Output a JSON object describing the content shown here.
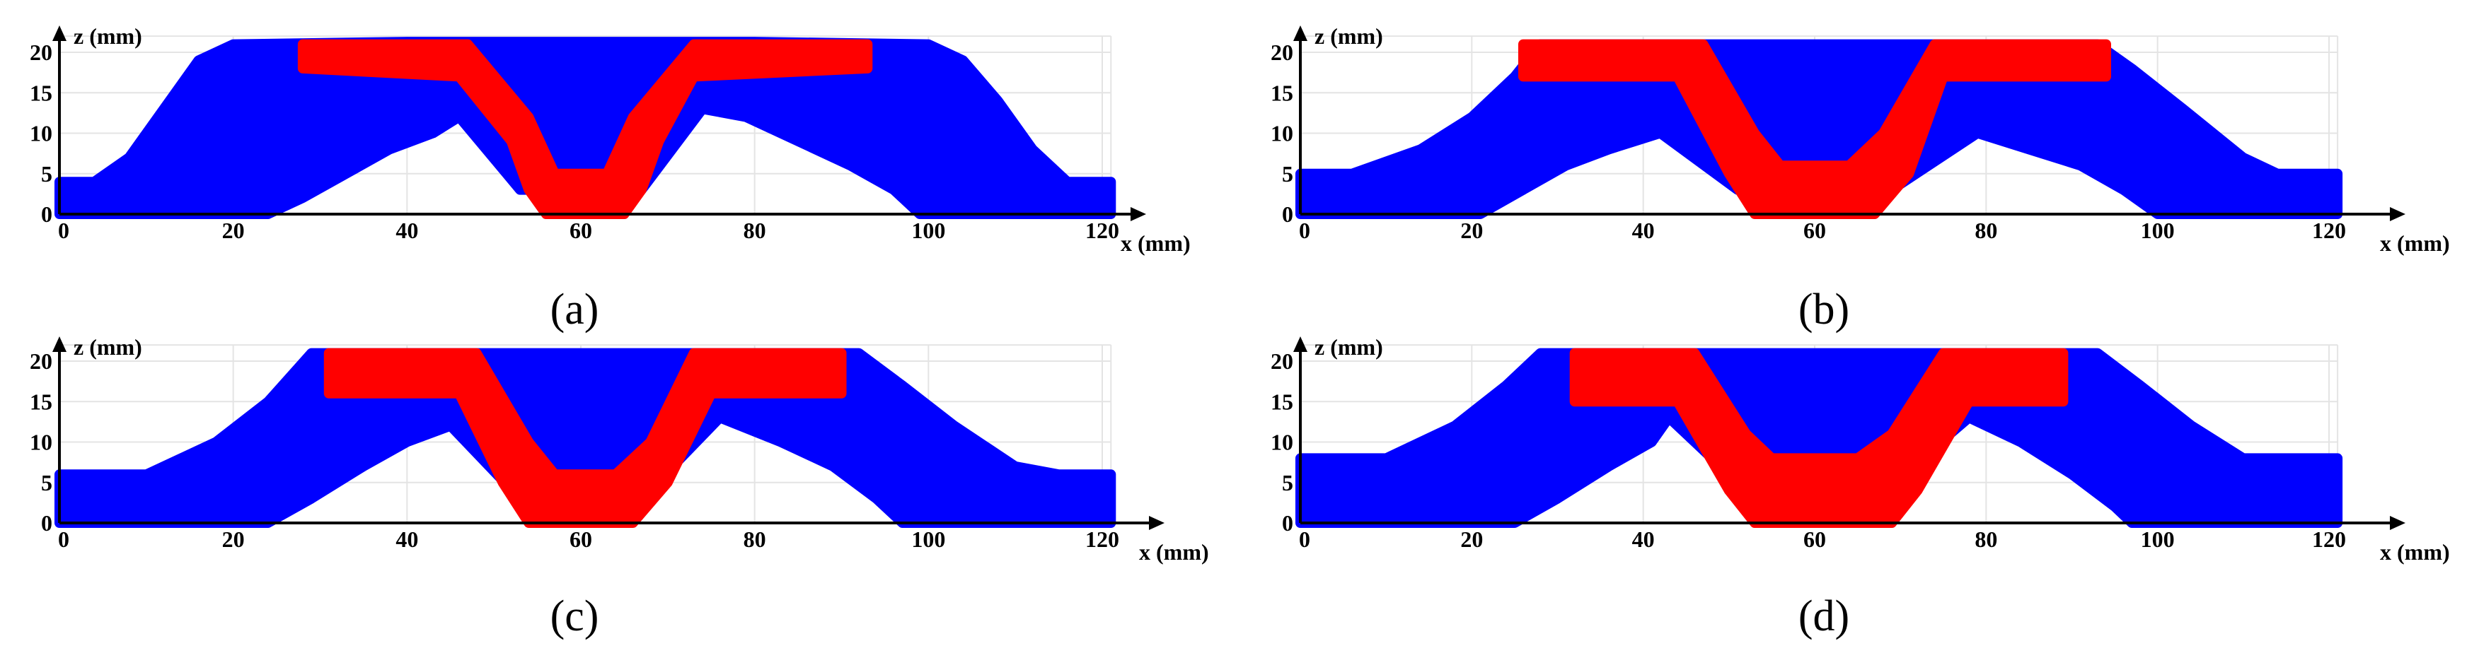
{
  "figure": {
    "panels": [
      {
        "caption": "(a)",
        "xlabel": "x (mm)",
        "ylabel": "z (mm)"
      },
      {
        "caption": "(b)",
        "xlabel": "x (mm)",
        "ylabel": "z (mm)"
      },
      {
        "caption": "(c)",
        "xlabel": "x (mm)",
        "ylabel": "z (mm)"
      },
      {
        "caption": "(d)",
        "xlabel": "x (mm)",
        "ylabel": "z (mm)"
      }
    ]
  },
  "chart_data": [
    {
      "type": "area",
      "panel": "(a)",
      "title": "",
      "xlabel": "x (mm)",
      "ylabel": "z (mm)",
      "xlim": [
        0,
        121
      ],
      "ylim": [
        0,
        22
      ],
      "xticks": [
        0,
        20,
        40,
        60,
        80,
        100,
        120
      ],
      "yticks": [
        0,
        5,
        10,
        15,
        20
      ],
      "grid": true,
      "colors": {
        "region1": "#0000ff",
        "region2": "#ff0000"
      },
      "regions": [
        {
          "name": "blue",
          "color": "#0000ff",
          "upper": [
            [
              0,
              4
            ],
            [
              4,
              4
            ],
            [
              8,
              7
            ],
            [
              12,
              13
            ],
            [
              16,
              19
            ],
            [
              20,
              21
            ],
            [
              40,
              21.3
            ],
            [
              80,
              21.3
            ],
            [
              100,
              21
            ],
            [
              104,
              19
            ],
            [
              108,
              14
            ],
            [
              112,
              8
            ],
            [
              116,
              4
            ],
            [
              121,
              4
            ]
          ],
          "lower": [
            [
              0,
              0
            ],
            [
              24,
              0
            ],
            [
              28,
              2
            ],
            [
              33,
              5
            ],
            [
              38,
              8
            ],
            [
              43,
              10
            ],
            [
              46,
              12
            ],
            [
              53,
              3
            ],
            [
              67,
              3
            ],
            [
              74,
              13
            ],
            [
              79,
              12
            ],
            [
              85,
              9
            ],
            [
              91,
              6
            ],
            [
              96,
              3
            ],
            [
              99,
              0
            ],
            [
              121,
              0
            ]
          ]
        },
        {
          "name": "red",
          "color": "#ff0000",
          "upper": [
            [
              28,
              21
            ],
            [
              47,
              21
            ],
            [
              54,
              12
            ],
            [
              57,
              5
            ],
            [
              63,
              5
            ],
            [
              66,
              12
            ],
            [
              73,
              21
            ],
            [
              93,
              21
            ]
          ],
          "lower": [
            [
              28,
              18
            ],
            [
              46,
              17
            ],
            [
              52,
              9
            ],
            [
              54,
              3
            ],
            [
              56,
              0
            ],
            [
              65,
              0
            ],
            [
              67,
              3
            ],
            [
              69,
              9
            ],
            [
              73,
              17
            ],
            [
              93,
              18
            ]
          ]
        }
      ]
    },
    {
      "type": "area",
      "panel": "(b)",
      "title": "",
      "xlabel": "x (mm)",
      "ylabel": "z (mm)",
      "xlim": [
        0,
        121
      ],
      "ylim": [
        0,
        22
      ],
      "xticks": [
        0,
        20,
        40,
        60,
        80,
        100,
        120
      ],
      "yticks": [
        0,
        5,
        10,
        15,
        20
      ],
      "grid": true,
      "colors": {
        "region1": "#0000ff",
        "region2": "#ff0000"
      },
      "regions": [
        {
          "name": "blue",
          "color": "#0000ff",
          "upper": [
            [
              0,
              5
            ],
            [
              6,
              5
            ],
            [
              14,
              8
            ],
            [
              20,
              12
            ],
            [
              25,
              17
            ],
            [
              28,
              21
            ],
            [
              93,
              21
            ],
            [
              97,
              18
            ],
            [
              103,
              13
            ],
            [
              110,
              7
            ],
            [
              114,
              5
            ],
            [
              121,
              5
            ]
          ],
          "lower": [
            [
              0,
              0
            ],
            [
              21,
              0
            ],
            [
              26,
              3
            ],
            [
              31,
              6
            ],
            [
              36,
              8
            ],
            [
              42,
              10
            ],
            [
              51,
              3
            ],
            [
              69,
              3
            ],
            [
              79,
              10
            ],
            [
              85,
              8
            ],
            [
              91,
              6
            ],
            [
              96,
              3
            ],
            [
              100,
              0
            ],
            [
              121,
              0
            ]
          ]
        },
        {
          "name": "red",
          "color": "#ff0000",
          "upper": [
            [
              26,
              21
            ],
            [
              47,
              21
            ],
            [
              53,
              10
            ],
            [
              56,
              6
            ],
            [
              64,
              6
            ],
            [
              68,
              10
            ],
            [
              74,
              21
            ],
            [
              94,
              21
            ]
          ],
          "lower": [
            [
              26,
              17
            ],
            [
              44,
              17
            ],
            [
              50,
              5
            ],
            [
              53,
              0
            ],
            [
              67,
              0
            ],
            [
              71,
              5
            ],
            [
              75,
              17
            ],
            [
              94,
              17
            ]
          ]
        }
      ]
    },
    {
      "type": "area",
      "panel": "(c)",
      "title": "",
      "xlabel": "x (mm)",
      "ylabel": "z (mm)",
      "xlim": [
        0,
        121
      ],
      "ylim": [
        0,
        22
      ],
      "xticks": [
        0,
        20,
        40,
        60,
        80,
        100,
        120
      ],
      "yticks": [
        0,
        5,
        10,
        15,
        20
      ],
      "grid": true,
      "colors": {
        "region1": "#0000ff",
        "region2": "#ff0000"
      },
      "regions": [
        {
          "name": "blue",
          "color": "#0000ff",
          "upper": [
            [
              0,
              6
            ],
            [
              10,
              6
            ],
            [
              18,
              10
            ],
            [
              24,
              15
            ],
            [
              29,
              21
            ],
            [
              92,
              21
            ],
            [
              97,
              17
            ],
            [
              103,
              12
            ],
            [
              110,
              7
            ],
            [
              115,
              6
            ],
            [
              121,
              6
            ]
          ],
          "lower": [
            [
              0,
              0
            ],
            [
              24,
              0
            ],
            [
              29,
              3
            ],
            [
              35,
              7
            ],
            [
              40,
              10
            ],
            [
              45,
              12
            ],
            [
              53,
              3
            ],
            [
              67,
              3
            ],
            [
              76,
              13
            ],
            [
              83,
              10
            ],
            [
              89,
              7
            ],
            [
              94,
              3
            ],
            [
              97,
              0
            ],
            [
              121,
              0
            ]
          ]
        },
        {
          "name": "red",
          "color": "#ff0000",
          "upper": [
            [
              31,
              21
            ],
            [
              48,
              21
            ],
            [
              54,
              10
            ],
            [
              57,
              6
            ],
            [
              64,
              6
            ],
            [
              68,
              10
            ],
            [
              73,
              21
            ],
            [
              90,
              21
            ]
          ],
          "lower": [
            [
              31,
              16
            ],
            [
              46,
              16
            ],
            [
              51,
              5
            ],
            [
              54,
              0
            ],
            [
              66,
              0
            ],
            [
              70,
              5
            ],
            [
              75,
              16
            ],
            [
              90,
              16
            ]
          ]
        }
      ]
    },
    {
      "type": "area",
      "panel": "(d)",
      "title": "",
      "xlabel": "x (mm)",
      "ylabel": "z (mm)",
      "xlim": [
        0,
        121
      ],
      "ylim": [
        0,
        22
      ],
      "xticks": [
        0,
        20,
        40,
        60,
        80,
        100,
        120
      ],
      "yticks": [
        0,
        5,
        10,
        15,
        20
      ],
      "grid": true,
      "colors": {
        "region1": "#0000ff",
        "region2": "#ff0000"
      },
      "regions": [
        {
          "name": "blue",
          "color": "#0000ff",
          "upper": [
            [
              0,
              8
            ],
            [
              10,
              8
            ],
            [
              18,
              12
            ],
            [
              24,
              17
            ],
            [
              28,
              21
            ],
            [
              93,
              21
            ],
            [
              98,
              17
            ],
            [
              104,
              12
            ],
            [
              110,
              8
            ],
            [
              121,
              8
            ]
          ],
          "lower": [
            [
              0,
              0
            ],
            [
              25,
              0
            ],
            [
              30,
              3
            ],
            [
              36,
              7
            ],
            [
              41,
              10
            ],
            [
              43,
              13
            ],
            [
              53,
              3
            ],
            [
              67,
              3
            ],
            [
              78,
              13
            ],
            [
              84,
              10
            ],
            [
              90,
              6
            ],
            [
              95,
              2
            ],
            [
              97,
              0
            ],
            [
              121,
              0
            ]
          ]
        },
        {
          "name": "red",
          "color": "#ff0000",
          "upper": [
            [
              32,
              21
            ],
            [
              46,
              21
            ],
            [
              52,
              11
            ],
            [
              55,
              8
            ],
            [
              65,
              8
            ],
            [
              69,
              11
            ],
            [
              75,
              21
            ],
            [
              89,
              21
            ]
          ],
          "lower": [
            [
              32,
              15
            ],
            [
              44,
              15
            ],
            [
              50,
              4
            ],
            [
              53,
              0
            ],
            [
              69,
              0
            ],
            [
              72,
              4
            ],
            [
              78,
              15
            ],
            [
              89,
              15
            ]
          ]
        }
      ]
    }
  ]
}
